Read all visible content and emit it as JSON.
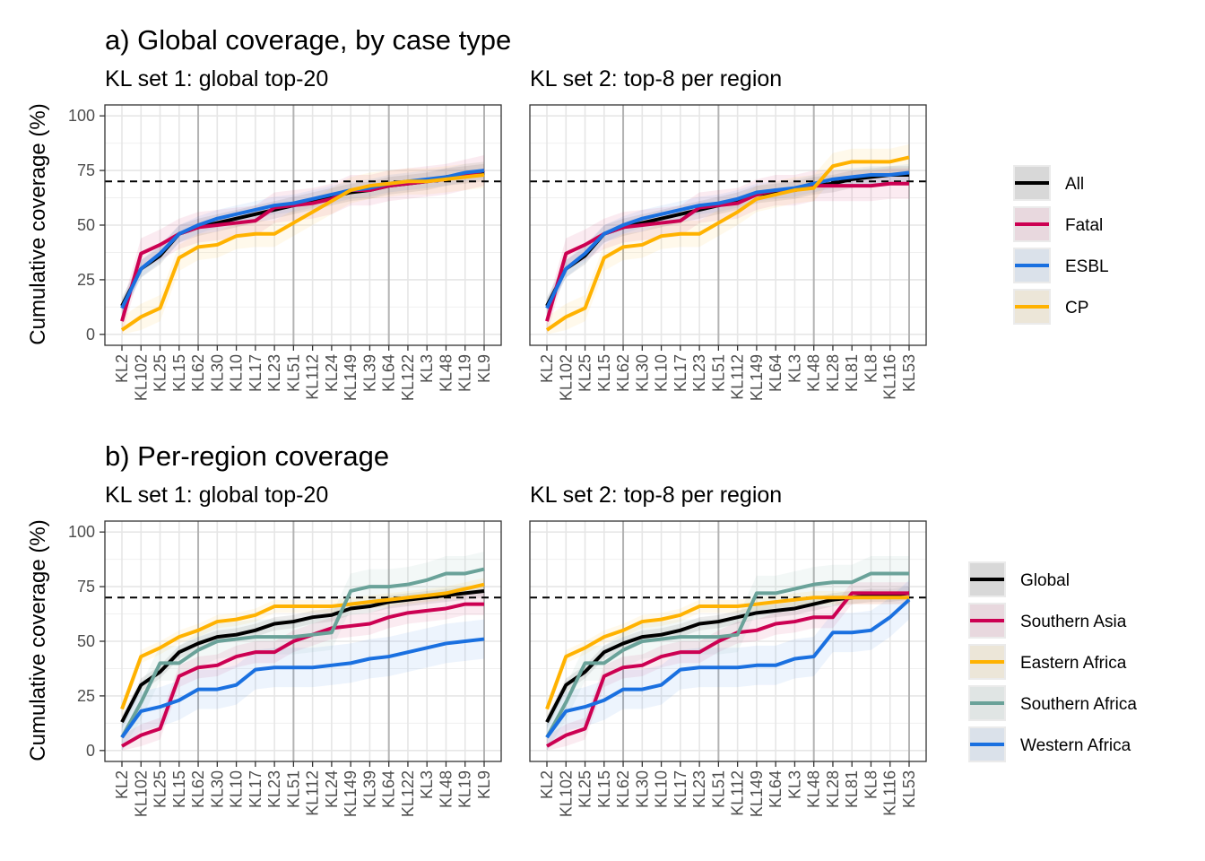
{
  "figure": {
    "row_a_title": "a) Global coverage, by case type",
    "row_b_title": "b) Per-region coverage",
    "y_axis_label": "Cumulative coverage (%)",
    "threshold": 70
  },
  "chart_data": [
    {
      "id": "a1",
      "type": "line",
      "title": "KL set 1: global top-20",
      "ylabel": "Cumulative coverage (%)",
      "ylim": [
        0,
        100
      ],
      "yticks": [
        0,
        25,
        50,
        75,
        100
      ],
      "categories": [
        "KL2",
        "KL102",
        "KL25",
        "KL15",
        "KL62",
        "KL30",
        "KL10",
        "KL17",
        "KL23",
        "KL51",
        "KL112",
        "KL24",
        "KL149",
        "KL39",
        "KL64",
        "KL122",
        "KL3",
        "KL48",
        "KL19",
        "KL9"
      ],
      "major_gridlines_at": [
        "KL62",
        "KL51",
        "KL64",
        "KL9"
      ],
      "hline": 70,
      "grid": true,
      "series": [
        {
          "name": "All",
          "color": "#000000",
          "values": [
            13,
            30,
            36,
            46,
            49,
            51,
            53,
            55,
            57,
            59,
            61,
            63,
            65,
            66,
            68,
            69,
            70,
            72,
            73,
            74
          ],
          "band": 4
        },
        {
          "name": "Fatal",
          "color": "#cc0052",
          "values": [
            6,
            37,
            41,
            46,
            49,
            50,
            51,
            52,
            58,
            59,
            60,
            62,
            66,
            66,
            68,
            69,
            70,
            71,
            73,
            75
          ],
          "band": 7
        },
        {
          "name": "ESBL",
          "color": "#1a70e0",
          "values": [
            12,
            30,
            37,
            46,
            50,
            53,
            55,
            57,
            59,
            60,
            62,
            64,
            66,
            67,
            69,
            70,
            71,
            72,
            74,
            75
          ],
          "band": 4
        },
        {
          "name": "CP",
          "color": "#ffb200",
          "values": [
            2,
            8,
            12,
            35,
            40,
            41,
            45,
            46,
            46,
            51,
            56,
            61,
            66,
            68,
            69,
            70,
            70,
            71,
            72,
            73
          ],
          "band": 6
        }
      ]
    },
    {
      "id": "a2",
      "type": "line",
      "title": "KL set 2: top-8 per region",
      "ylim": [
        0,
        100
      ],
      "yticks": [
        0,
        25,
        50,
        75,
        100
      ],
      "categories": [
        "KL2",
        "KL102",
        "KL25",
        "KL15",
        "KL62",
        "KL30",
        "KL10",
        "KL17",
        "KL23",
        "KL51",
        "KL112",
        "KL149",
        "KL64",
        "KL3",
        "KL48",
        "KL28",
        "KL81",
        "KL8",
        "KL116",
        "KL53"
      ],
      "major_gridlines_at": [
        "KL62",
        "KL51",
        "KL48",
        "KL53"
      ],
      "hline": 70,
      "grid": true,
      "series": [
        {
          "name": "All",
          "color": "#000000",
          "values": [
            13,
            30,
            36,
            46,
            49,
            51,
            53,
            55,
            57,
            59,
            61,
            64,
            65,
            66,
            68,
            69,
            71,
            72,
            73,
            73
          ],
          "band": 4
        },
        {
          "name": "Fatal",
          "color": "#cc0052",
          "values": [
            6,
            37,
            41,
            46,
            49,
            50,
            51,
            52,
            58,
            59,
            60,
            64,
            66,
            66,
            68,
            68,
            68,
            68,
            69,
            69
          ],
          "band": 7
        },
        {
          "name": "ESBL",
          "color": "#1a70e0",
          "values": [
            12,
            30,
            37,
            46,
            50,
            53,
            55,
            57,
            59,
            60,
            62,
            65,
            66,
            67,
            69,
            71,
            72,
            73,
            73,
            74
          ],
          "band": 4
        },
        {
          "name": "CP",
          "color": "#ffb200",
          "values": [
            2,
            8,
            12,
            35,
            40,
            41,
            45,
            46,
            46,
            51,
            56,
            62,
            64,
            66,
            67,
            77,
            79,
            79,
            79,
            81
          ],
          "band": 6
        }
      ]
    },
    {
      "id": "b1",
      "type": "line",
      "title": "KL set 1: global top-20",
      "ylabel": "Cumulative coverage (%)",
      "ylim": [
        0,
        100
      ],
      "yticks": [
        0,
        25,
        50,
        75,
        100
      ],
      "categories": [
        "KL2",
        "KL102",
        "KL25",
        "KL15",
        "KL62",
        "KL30",
        "KL10",
        "KL17",
        "KL23",
        "KL51",
        "KL112",
        "KL24",
        "KL149",
        "KL39",
        "KL64",
        "KL122",
        "KL3",
        "KL48",
        "KL19",
        "KL9"
      ],
      "major_gridlines_at": [
        "KL62",
        "KL51",
        "KL64",
        "KL9"
      ],
      "hline": 70,
      "grid": true,
      "series": [
        {
          "name": "Global",
          "color": "#000000",
          "values": [
            13,
            30,
            36,
            45,
            49,
            52,
            53,
            55,
            58,
            59,
            61,
            62,
            65,
            66,
            68,
            69,
            70,
            71,
            72,
            73
          ],
          "band": 3
        },
        {
          "name": "Southern Asia",
          "color": "#cc0052",
          "values": [
            2,
            7,
            10,
            34,
            38,
            39,
            43,
            45,
            45,
            50,
            53,
            56,
            57,
            58,
            61,
            63,
            64,
            65,
            67,
            67
          ],
          "band": 5
        },
        {
          "name": "Eastern Africa",
          "color": "#ffb200",
          "values": [
            19,
            43,
            47,
            52,
            55,
            59,
            60,
            62,
            66,
            66,
            66,
            66,
            67,
            68,
            69,
            70,
            71,
            72,
            74,
            76
          ],
          "band": 3
        },
        {
          "name": "Southern Africa",
          "color": "#6aa299",
          "values": [
            6,
            22,
            40,
            40,
            46,
            50,
            51,
            52,
            52,
            52,
            53,
            54,
            73,
            75,
            75,
            76,
            78,
            81,
            81,
            83
          ],
          "band": 8
        },
        {
          "name": "Western Africa",
          "color": "#1a70e0",
          "values": [
            6,
            18,
            20,
            23,
            28,
            28,
            30,
            37,
            38,
            38,
            38,
            39,
            40,
            42,
            43,
            45,
            47,
            49,
            50,
            51
          ],
          "band": 9
        }
      ]
    },
    {
      "id": "b2",
      "type": "line",
      "title": "KL set 2: top-8 per region",
      "ylim": [
        0,
        100
      ],
      "yticks": [
        0,
        25,
        50,
        75,
        100
      ],
      "categories": [
        "KL2",
        "KL102",
        "KL25",
        "KL15",
        "KL62",
        "KL30",
        "KL10",
        "KL17",
        "KL23",
        "KL51",
        "KL112",
        "KL149",
        "KL64",
        "KL3",
        "KL48",
        "KL28",
        "KL81",
        "KL8",
        "KL116",
        "KL53"
      ],
      "major_gridlines_at": [
        "KL62",
        "KL51",
        "KL48",
        "KL53"
      ],
      "hline": 70,
      "grid": true,
      "series": [
        {
          "name": "Global",
          "color": "#000000",
          "values": [
            13,
            30,
            36,
            45,
            49,
            52,
            53,
            55,
            58,
            59,
            61,
            63,
            64,
            65,
            67,
            69,
            70,
            71,
            71,
            72
          ],
          "band": 3
        },
        {
          "name": "Southern Asia",
          "color": "#cc0052",
          "values": [
            2,
            7,
            10,
            34,
            38,
            39,
            43,
            45,
            45,
            50,
            54,
            55,
            58,
            59,
            61,
            61,
            72,
            72,
            72,
            72
          ],
          "band": 5
        },
        {
          "name": "Eastern Africa",
          "color": "#ffb200",
          "values": [
            19,
            43,
            47,
            52,
            55,
            59,
            60,
            62,
            66,
            66,
            66,
            67,
            68,
            69,
            70,
            70,
            70,
            70,
            70,
            70
          ],
          "band": 3
        },
        {
          "name": "Southern Africa",
          "color": "#6aa299",
          "values": [
            6,
            22,
            40,
            40,
            46,
            50,
            51,
            52,
            52,
            52,
            53,
            72,
            72,
            74,
            76,
            77,
            77,
            81,
            81,
            81
          ],
          "band": 8
        },
        {
          "name": "Western Africa",
          "color": "#1a70e0",
          "values": [
            6,
            18,
            20,
            23,
            28,
            28,
            30,
            37,
            38,
            38,
            38,
            39,
            39,
            42,
            43,
            54,
            54,
            55,
            61,
            69
          ],
          "band": 9
        }
      ]
    }
  ],
  "legends": {
    "a": [
      {
        "label": "All",
        "color": "#000000"
      },
      {
        "label": "Fatal",
        "color": "#cc0052"
      },
      {
        "label": "ESBL",
        "color": "#1a70e0"
      },
      {
        "label": "CP",
        "color": "#ffb200"
      }
    ],
    "b": [
      {
        "label": "Global",
        "color": "#000000"
      },
      {
        "label": "Southern Asia",
        "color": "#cc0052"
      },
      {
        "label": "Eastern Africa",
        "color": "#ffb200"
      },
      {
        "label": "Southern Africa",
        "color": "#6aa299"
      },
      {
        "label": "Western Africa",
        "color": "#1a70e0"
      }
    ]
  }
}
